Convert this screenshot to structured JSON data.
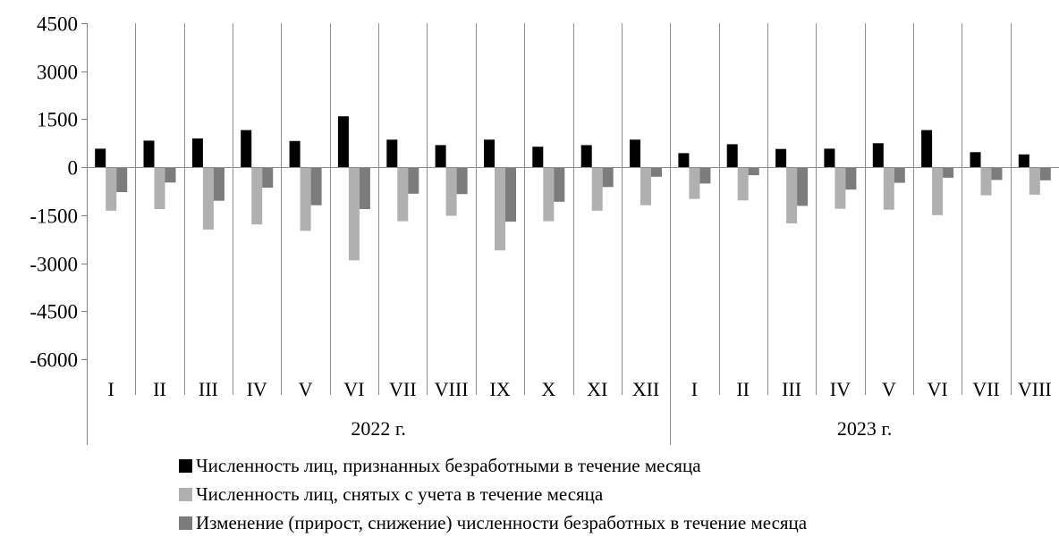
{
  "chart_data": {
    "type": "bar",
    "title": "",
    "xlabel": "",
    "ylabel": "",
    "ylim": [
      -6000,
      4500
    ],
    "yticks": [
      4500,
      3000,
      1500,
      0,
      -1500,
      -3000,
      -4500,
      -6000
    ],
    "y_tick_labels": [
      "4500",
      "3000",
      "1500",
      "0",
      "-1500",
      "-3000",
      "-4500",
      "-6000"
    ],
    "categories": [
      "I",
      "II",
      "III",
      "IV",
      "V",
      "VI",
      "VII",
      "VIII",
      "IX",
      "X",
      "XI",
      "XII",
      "I",
      "II",
      "III",
      "IV",
      "V",
      "VI",
      "VII",
      "VIII"
    ],
    "groups": [
      {
        "label": "2022 г.",
        "count": 12
      },
      {
        "label": "2023 г.",
        "count": 8
      }
    ],
    "grid": "vertical lines between categories",
    "legend_position": "bottom",
    "series": [
      {
        "name": "Численность лиц, признанных безработными в течение месяца",
        "color": "#000000",
        "values": [
          580,
          830,
          900,
          1160,
          820,
          1590,
          860,
          690,
          860,
          640,
          690,
          860,
          440,
          720,
          570,
          580,
          750,
          1160,
          470,
          400
        ]
      },
      {
        "name": "Численность лиц, снятых с учета в течение месяца",
        "color": "#b0b0b0",
        "values": [
          -1360,
          -1310,
          -1950,
          -1790,
          -1990,
          -2910,
          -1690,
          -1520,
          -2600,
          -1690,
          -1360,
          -1190,
          -990,
          -1040,
          -1760,
          -1300,
          -1330,
          -1500,
          -880,
          -860
        ]
      },
      {
        "name": "Изменение (прирост, снижение) численности безработных в течение месяца",
        "color": "#7c7c7c",
        "values": [
          -780,
          -480,
          -1050,
          -640,
          -1190,
          -1310,
          -830,
          -840,
          -1700,
          -1080,
          -620,
          -300,
          -510,
          -250,
          -1210,
          -700,
          -490,
          -330,
          -400,
          -410
        ]
      }
    ]
  }
}
